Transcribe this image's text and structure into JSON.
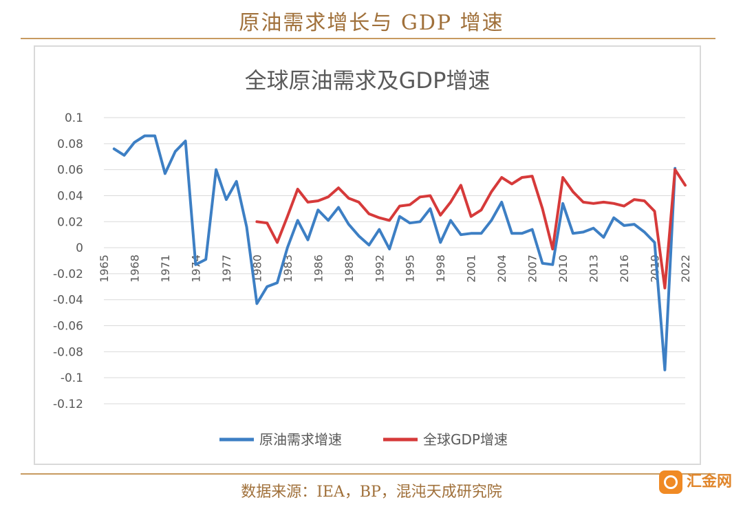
{
  "page": {
    "title": "原油需求增长与 GDP 增速",
    "source": "数据来源：IEA，BP，混沌天成研究院",
    "watermark": "汇金网"
  },
  "chart_data": {
    "type": "line",
    "title": "全球原油需求及GDP增速",
    "xlabel": "",
    "ylabel": "",
    "ylim": [
      -0.12,
      0.1
    ],
    "yticks": [
      "0.1",
      "0.08",
      "0.06",
      "0.04",
      "0.02",
      "0",
      "-0.02",
      "-0.04",
      "-0.06",
      "-0.08",
      "-0.1",
      "-0.12"
    ],
    "xticks": [
      "1965",
      "1968",
      "1971",
      "1974",
      "1977",
      "1980",
      "1983",
      "1986",
      "1989",
      "1992",
      "1995",
      "1998",
      "2001",
      "2004",
      "2007",
      "2010",
      "2013",
      "2016",
      "2019",
      "2022"
    ],
    "grid": true,
    "legend_position": "bottom",
    "series": [
      {
        "name": "原油需求增速",
        "color": "#3d7fc4",
        "x": [
          1966,
          1967,
          1968,
          1969,
          1970,
          1971,
          1972,
          1973,
          1974,
          1975,
          1976,
          1977,
          1978,
          1979,
          1980,
          1981,
          1982,
          1983,
          1984,
          1985,
          1986,
          1987,
          1988,
          1989,
          1990,
          1991,
          1992,
          1993,
          1994,
          1995,
          1996,
          1997,
          1998,
          1999,
          2000,
          2001,
          2002,
          2003,
          2004,
          2005,
          2006,
          2007,
          2008,
          2009,
          2010,
          2011,
          2012,
          2013,
          2014,
          2015,
          2016,
          2017,
          2018,
          2019,
          2020,
          2021
        ],
        "values": [
          0.076,
          0.071,
          0.081,
          0.086,
          0.086,
          0.057,
          0.074,
          0.082,
          -0.013,
          -0.009,
          0.06,
          0.037,
          0.051,
          0.016,
          -0.043,
          -0.03,
          -0.027,
          0.0,
          0.021,
          0.006,
          0.029,
          0.021,
          0.031,
          0.018,
          0.009,
          0.002,
          0.014,
          -0.001,
          0.024,
          0.019,
          0.02,
          0.03,
          0.004,
          0.021,
          0.01,
          0.011,
          0.011,
          0.021,
          0.035,
          0.011,
          0.011,
          0.014,
          -0.012,
          -0.013,
          0.034,
          0.011,
          0.012,
          0.015,
          0.008,
          0.023,
          0.017,
          0.018,
          0.012,
          0.004,
          -0.094,
          0.061
        ]
      },
      {
        "name": "全球GDP增速",
        "color": "#d63a3a",
        "x": [
          1980,
          1981,
          1982,
          1983,
          1984,
          1985,
          1986,
          1987,
          1988,
          1989,
          1990,
          1991,
          1992,
          1993,
          1994,
          1995,
          1996,
          1997,
          1998,
          1999,
          2000,
          2001,
          2002,
          2003,
          2004,
          2005,
          2006,
          2007,
          2008,
          2009,
          2010,
          2011,
          2012,
          2013,
          2014,
          2015,
          2016,
          2017,
          2018,
          2019,
          2020,
          2021,
          2022
        ],
        "values": [
          0.02,
          0.019,
          0.004,
          0.024,
          0.045,
          0.035,
          0.036,
          0.039,
          0.046,
          0.038,
          0.035,
          0.026,
          0.023,
          0.021,
          0.032,
          0.033,
          0.039,
          0.04,
          0.025,
          0.035,
          0.048,
          0.024,
          0.029,
          0.043,
          0.054,
          0.049,
          0.054,
          0.055,
          0.03,
          -0.001,
          0.054,
          0.043,
          0.035,
          0.034,
          0.035,
          0.034,
          0.032,
          0.037,
          0.036,
          0.028,
          -0.031,
          0.06,
          0.048
        ]
      }
    ]
  }
}
